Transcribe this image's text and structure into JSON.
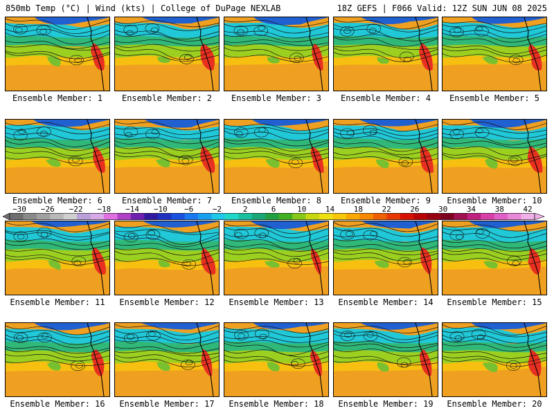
{
  "header": {
    "left": "850mb Temp (°C) | Wind (kts) | College of DuPage NEXLAB",
    "right": "18Z GEFS | F066 Valid: 12Z SUN JUN 08 2025"
  },
  "panels": [
    {
      "member": 1,
      "caption": "Ensemble Member: 1"
    },
    {
      "member": 2,
      "caption": "Ensemble Member: 2"
    },
    {
      "member": 3,
      "caption": "Ensemble Member: 3"
    },
    {
      "member": 4,
      "caption": "Ensemble Member: 4"
    },
    {
      "member": 5,
      "caption": "Ensemble Member: 5"
    },
    {
      "member": 6,
      "caption": "Ensemble Member: 6"
    },
    {
      "member": 7,
      "caption": "Ensemble Member: 7"
    },
    {
      "member": 8,
      "caption": "Ensemble Member: 8"
    },
    {
      "member": 9,
      "caption": "Ensemble Member: 9"
    },
    {
      "member": 10,
      "caption": "Ensemble Member: 10"
    },
    {
      "member": 11,
      "caption": "Ensemble Member: 11"
    },
    {
      "member": 12,
      "caption": "Ensemble Member: 12"
    },
    {
      "member": 13,
      "caption": "Ensemble Member: 13"
    },
    {
      "member": 14,
      "caption": "Ensemble Member: 14"
    },
    {
      "member": 15,
      "caption": "Ensemble Member: 15"
    },
    {
      "member": 16,
      "caption": "Ensemble Member: 16"
    },
    {
      "member": 17,
      "caption": "Ensemble Member: 17"
    },
    {
      "member": 18,
      "caption": "Ensemble Member: 18"
    },
    {
      "member": 19,
      "caption": "Ensemble Member: 19"
    },
    {
      "member": 20,
      "caption": "Ensemble Member: 20"
    }
  ],
  "colorbar": {
    "unit": "°C",
    "labels": [
      "−30",
      "−26",
      "−22",
      "−18",
      "−14",
      "−10",
      "−6",
      "−2",
      "2",
      "6",
      "10",
      "14",
      "18",
      "22",
      "26",
      "30",
      "34",
      "38",
      "42"
    ],
    "colors": [
      "#6e6e6e",
      "#8a8a8a",
      "#a0a0a0",
      "#b8b8b8",
      "#cfcfcf",
      "#b9a0d8",
      "#d8a8e8",
      "#e070e0",
      "#b040c8",
      "#7020b0",
      "#3018a0",
      "#2030c0",
      "#1850e0",
      "#1878f0",
      "#18a0f0",
      "#20c8e8",
      "#20d8c8",
      "#18c0a0",
      "#18a878",
      "#20a040",
      "#40b020",
      "#88c818",
      "#c8d810",
      "#f0e010",
      "#f8c808",
      "#f8a800",
      "#f88800",
      "#f06000",
      "#e83800",
      "#d81000",
      "#b80000",
      "#980010",
      "#800020",
      "#a01050",
      "#c02080",
      "#d840a8",
      "#e060c8",
      "#e888d8",
      "#f0b0e8"
    ]
  }
}
